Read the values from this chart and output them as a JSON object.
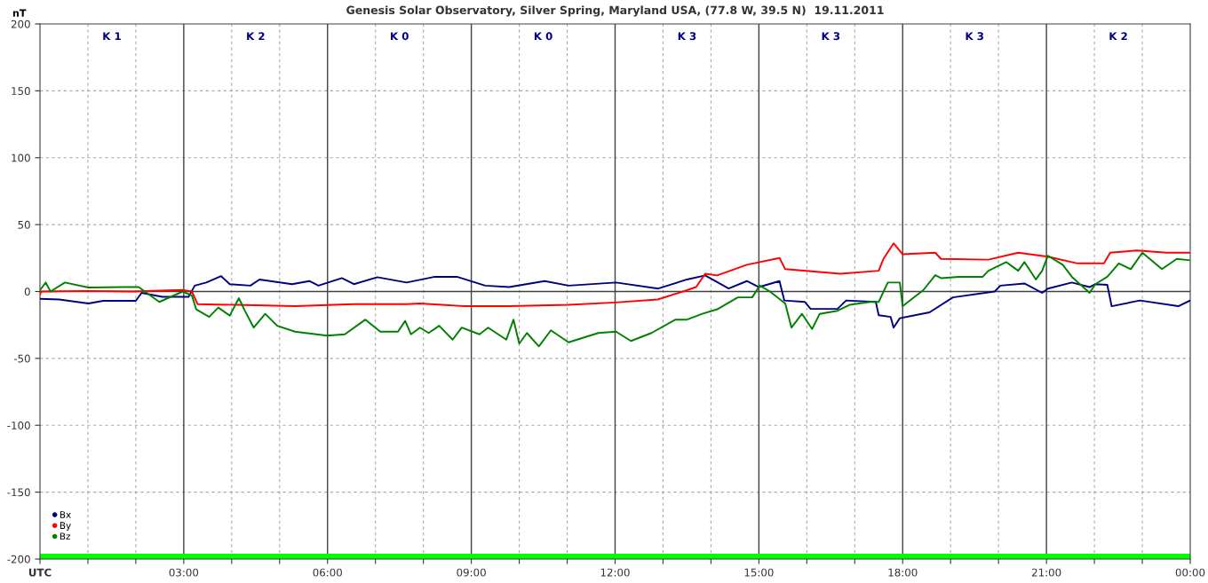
{
  "chart_data": {
    "type": "line",
    "title": "Genesis Solar Observatory, Silver Spring, Maryland USA, (77.8 W, 39.5 N)  19.11.2011",
    "ylabel": "nT",
    "xlim": [
      0,
      24
    ],
    "ylim": [
      -200,
      200
    ],
    "xticks": [
      {
        "value": 0,
        "label": "UTC"
      },
      {
        "value": 1,
        "label": null
      },
      {
        "value": 2,
        "label": null
      },
      {
        "value": 3,
        "label": "03:00"
      },
      {
        "value": 4,
        "label": null
      },
      {
        "value": 5,
        "label": null
      },
      {
        "value": 6,
        "label": "06:00"
      },
      {
        "value": 7,
        "label": null
      },
      {
        "value": 8,
        "label": null
      },
      {
        "value": 9,
        "label": "09:00"
      },
      {
        "value": 10,
        "label": null
      },
      {
        "value": 11,
        "label": null
      },
      {
        "value": 12,
        "label": "12:00"
      },
      {
        "value": 13,
        "label": null
      },
      {
        "value": 14,
        "label": null
      },
      {
        "value": 15,
        "label": "15:00"
      },
      {
        "value": 16,
        "label": null
      },
      {
        "value": 17,
        "label": null
      },
      {
        "value": 18,
        "label": "18:00"
      },
      {
        "value": 19,
        "label": null
      },
      {
        "value": 20,
        "label": null
      },
      {
        "value": 21,
        "label": "21:00"
      },
      {
        "value": 22,
        "label": null
      },
      {
        "value": 23,
        "label": null
      },
      {
        "value": 24,
        "label": "00:00"
      }
    ],
    "yticks": [
      -200,
      -150,
      -100,
      -50,
      0,
      50,
      100,
      150,
      200
    ],
    "grid": true,
    "legend": "bottom left",
    "marker": "none",
    "line_style": "solid",
    "bands": [
      {
        "axis": "y",
        "from": -200,
        "to": -196,
        "color": "#00ff00"
      }
    ],
    "annotations": [
      "K 1",
      "K 2",
      "K 0",
      "K 0",
      "K 3",
      "K 3",
      "K 3",
      "K 2"
    ],
    "series": [
      {
        "name": "Bx",
        "color": "#000080",
        "x": [
          0,
          0.4,
          1.01,
          1.32,
          2.0,
          2.12,
          2.55,
          3.1,
          3.23,
          3.47,
          3.78,
          3.96,
          4.39,
          4.58,
          5.26,
          5.62,
          5.81,
          6.3,
          6.55,
          7.04,
          7.65,
          8.24,
          8.7,
          9.29,
          9.79,
          10.53,
          11.03,
          12.02,
          12.9,
          13.5,
          13.88,
          14.37,
          14.75,
          15.0,
          15.43,
          15.53,
          15.96,
          16.08,
          16.64,
          16.82,
          17.44,
          17.5,
          17.75,
          17.81,
          17.94,
          18.56,
          19.05,
          19.92,
          20.04,
          20.54,
          20.91,
          21.03,
          21.53,
          21.9,
          22.02,
          22.27,
          22.36,
          22.95,
          23.75,
          24.0
        ],
        "values": [
          -5.5,
          -6,
          -9,
          -7,
          -7,
          -1,
          -4,
          -4,
          4.4,
          6.7,
          11.5,
          5.5,
          4.4,
          9,
          5.5,
          7.8,
          4.4,
          10,
          5.5,
          10.7,
          6.7,
          11,
          11,
          4.4,
          3.3,
          7.8,
          4.4,
          6.7,
          2.2,
          9,
          12,
          2.2,
          7.8,
          3.3,
          7.8,
          -6.7,
          -7.8,
          -13,
          -13,
          -6.7,
          -7.8,
          -17.8,
          -19,
          -27,
          -20,
          -15.6,
          -4.4,
          0,
          4.4,
          6,
          -1,
          2.2,
          6.7,
          3.3,
          5.5,
          5,
          -11,
          -6.7,
          -11,
          -6.7
        ]
      },
      {
        "name": "By",
        "color": "#ff0000",
        "x": [
          0,
          0.03,
          1.01,
          1.94,
          2.98,
          3.17,
          3.29,
          4.09,
          5.32,
          6.55,
          7.65,
          7.93,
          8.86,
          9.79,
          11.03,
          12.0,
          12.89,
          13.5,
          13.69,
          13.88,
          14.13,
          14.75,
          15.43,
          15.55,
          16.7,
          17.5,
          17.6,
          17.81,
          18.0,
          18.68,
          18.8,
          19.79,
          20.41,
          21.03,
          21.65,
          22.2,
          22.33,
          22.89,
          23.5,
          24.0
        ],
        "values": [
          -2.2,
          0,
          0.4,
          0,
          1.1,
          0,
          -9.5,
          -10,
          -11,
          -9.5,
          -9.5,
          -8.9,
          -11,
          -11,
          -10,
          -8.2,
          -6,
          1,
          3.3,
          13.3,
          12,
          20,
          25,
          16.7,
          13.3,
          15.5,
          24.4,
          36,
          27.8,
          29,
          24.4,
          23.8,
          29,
          26,
          21,
          21,
          29,
          30.7,
          29,
          29
        ]
      },
      {
        "name": "Bz",
        "color": "#008000",
        "x": [
          0,
          0.12,
          0.22,
          0.52,
          1.01,
          1.75,
          2.06,
          2.49,
          2.98,
          3.17,
          3.26,
          3.53,
          3.72,
          3.96,
          4.15,
          4.27,
          4.46,
          4.7,
          4.95,
          5.32,
          5.99,
          6.36,
          6.79,
          7.1,
          7.47,
          7.62,
          7.74,
          7.93,
          8.11,
          8.33,
          8.61,
          8.8,
          9.17,
          9.35,
          9.73,
          9.88,
          10.0,
          10.16,
          10.41,
          10.66,
          11.03,
          11.65,
          12.02,
          12.33,
          12.76,
          13.26,
          13.5,
          13.82,
          14.13,
          14.56,
          14.86,
          15.02,
          15.23,
          15.55,
          15.68,
          15.9,
          16.11,
          16.27,
          16.64,
          16.89,
          17.32,
          17.5,
          17.69,
          17.94,
          18.0,
          18.19,
          18.43,
          18.68,
          18.8,
          19.17,
          19.67,
          19.79,
          20.16,
          20.41,
          20.54,
          20.78,
          20.91,
          21.03,
          21.34,
          21.53,
          21.9,
          22.02,
          22.27,
          22.51,
          22.76,
          23.0,
          23.41,
          23.72,
          24.0
        ],
        "values": [
          1,
          6.7,
          0,
          6.7,
          3,
          3.3,
          3.3,
          -7.8,
          0,
          -3,
          -13.3,
          -19,
          -12,
          -18,
          -5,
          -14,
          -27,
          -16.7,
          -25.6,
          -30,
          -33,
          -32,
          -21,
          -30,
          -30,
          -22,
          -32,
          -27,
          -31,
          -25.6,
          -36,
          -27,
          -32,
          -27,
          -36,
          -21,
          -39,
          -31,
          -41,
          -29,
          -38,
          -31,
          -30,
          -37,
          -31,
          -21,
          -21,
          -16.7,
          -13.3,
          -4.4,
          -4.4,
          4.4,
          0,
          -8.9,
          -27,
          -16.7,
          -28,
          -16.7,
          -14.4,
          -10,
          -7.8,
          -7.8,
          6.7,
          6.7,
          -11,
          -5.6,
          1,
          12.2,
          10,
          11,
          11,
          15.5,
          22,
          15.5,
          22,
          9,
          15.5,
          26.7,
          20,
          11,
          -1,
          5.5,
          11,
          21,
          16.7,
          29,
          16.7,
          24.4,
          23.3
        ]
      }
    ]
  }
}
